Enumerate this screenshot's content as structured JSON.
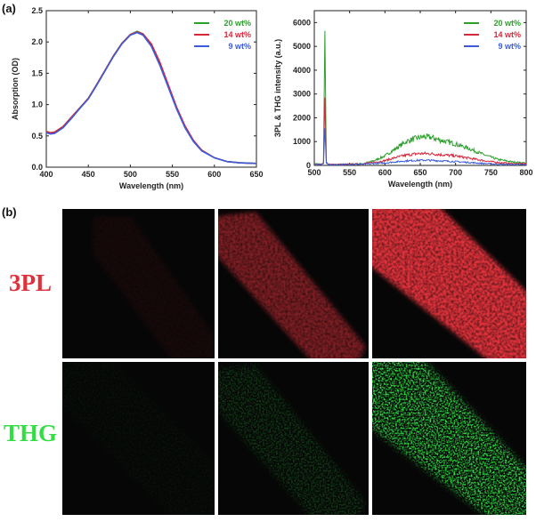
{
  "panel_a_label": "(a)",
  "panel_b_label": "(b)",
  "chart_data": [
    {
      "type": "line",
      "xlabel": "Wavelength (nm)",
      "ylabel": "Absorption (OD)",
      "xlim": [
        400,
        650
      ],
      "ylim": [
        0,
        2.5
      ],
      "xticks": [
        "400",
        "450",
        "500",
        "550",
        "600",
        "650"
      ],
      "yticks": [
        "0.0",
        "0.5",
        "1.0",
        "1.5",
        "2.0",
        "2.5"
      ],
      "legend_position": "top-right",
      "x": [
        400,
        405,
        410,
        420,
        430,
        440,
        450,
        460,
        470,
        480,
        490,
        500,
        508,
        515,
        525,
        535,
        545,
        555,
        565,
        575,
        585,
        600,
        615,
        630,
        650
      ],
      "series": [
        {
          "name": "20 wt%",
          "color": "#2ca02c",
          "values": [
            0.57,
            0.55,
            0.56,
            0.65,
            0.8,
            0.95,
            1.1,
            1.32,
            1.55,
            1.78,
            1.98,
            2.12,
            2.17,
            2.13,
            1.95,
            1.65,
            1.3,
            0.95,
            0.65,
            0.42,
            0.27,
            0.15,
            0.09,
            0.07,
            0.06
          ]
        },
        {
          "name": "14 wt%",
          "color": "#d6273b",
          "values": [
            0.57,
            0.55,
            0.56,
            0.65,
            0.8,
            0.95,
            1.1,
            1.32,
            1.55,
            1.78,
            1.98,
            2.12,
            2.16,
            2.13,
            1.97,
            1.68,
            1.32,
            0.96,
            0.66,
            0.43,
            0.27,
            0.15,
            0.09,
            0.07,
            0.06
          ]
        },
        {
          "name": "9 wt%",
          "color": "#3b5bdb",
          "values": [
            0.55,
            0.53,
            0.54,
            0.63,
            0.78,
            0.94,
            1.09,
            1.31,
            1.54,
            1.77,
            1.97,
            2.11,
            2.15,
            2.11,
            1.93,
            1.63,
            1.28,
            0.93,
            0.63,
            0.41,
            0.26,
            0.15,
            0.09,
            0.07,
            0.06
          ]
        }
      ]
    },
    {
      "type": "line",
      "xlabel": "Wavelength (nm)",
      "ylabel": "3PL & THG intensity (a.u.)",
      "xlim": [
        500,
        800
      ],
      "ylim": [
        0,
        6500
      ],
      "xticks": [
        "500",
        "550",
        "600",
        "650",
        "700",
        "750",
        "800"
      ],
      "yticks": [
        "0",
        "1000",
        "2000",
        "3000",
        "4000",
        "5000",
        "6000"
      ],
      "legend_position": "top-right",
      "x": [
        500,
        510,
        513,
        515,
        517,
        520,
        530,
        550,
        570,
        585,
        600,
        615,
        630,
        645,
        655,
        665,
        680,
        700,
        720,
        740,
        760,
        780,
        800
      ],
      "series": [
        {
          "name": "20 wt%",
          "color": "#2ca02c",
          "values": [
            80,
            60,
            100,
            5650,
            150,
            40,
            40,
            50,
            80,
            200,
            400,
            700,
            1000,
            1150,
            1200,
            1180,
            1050,
            900,
            700,
            450,
            250,
            150,
            100
          ]
        },
        {
          "name": "14 wt%",
          "color": "#d6273b",
          "values": [
            60,
            50,
            90,
            2850,
            120,
            40,
            40,
            50,
            70,
            130,
            200,
            330,
            430,
            490,
            500,
            490,
            450,
            400,
            300,
            200,
            120,
            80,
            60
          ]
        },
        {
          "name": "9 wt%",
          "color": "#3b5bdb",
          "values": [
            50,
            40,
            70,
            1560,
            100,
            30,
            30,
            40,
            50,
            80,
            100,
            150,
            190,
            210,
            220,
            210,
            190,
            160,
            120,
            80,
            50,
            40,
            30
          ]
        }
      ]
    }
  ],
  "row_labels": {
    "top": "3PL",
    "bottom": "THG"
  },
  "colors": {
    "pl": "#e0303a",
    "thg": "#33dd44"
  },
  "image_intensity": {
    "pl": [
      0.08,
      0.55,
      1.0
    ],
    "thg": [
      0.05,
      0.25,
      1.0
    ]
  }
}
